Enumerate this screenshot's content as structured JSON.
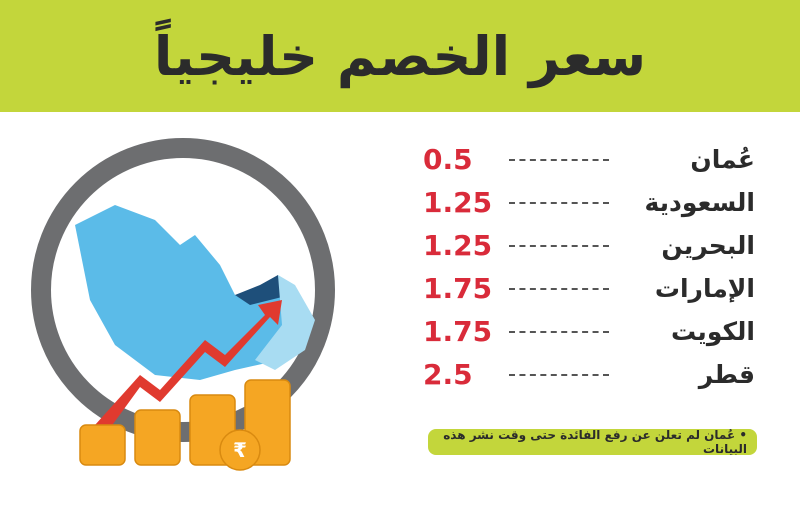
{
  "title": "سعر الخصم خليجياً",
  "rates": [
    {
      "country": "عُمان",
      "value": "0.5"
    },
    {
      "country": "السعودية",
      "value": "1.25"
    },
    {
      "country": "البحرين",
      "value": "1.25"
    },
    {
      "country": "الإمارات",
      "value": "1.75"
    },
    {
      "country": "الكويت",
      "value": "1.75"
    },
    {
      "country": "قطر",
      "value": "2.5"
    }
  ],
  "note": "• عُمان لم تعلن عن رفع الفائدة حتى وقت نشر هذه البيانات",
  "colors": {
    "accent": "#c3d63b",
    "value": "#d92b3a",
    "map": "#5bbbe8",
    "ring": "#6d6e70",
    "arrow": "#e03a2f",
    "coins": "#f5a623"
  }
}
